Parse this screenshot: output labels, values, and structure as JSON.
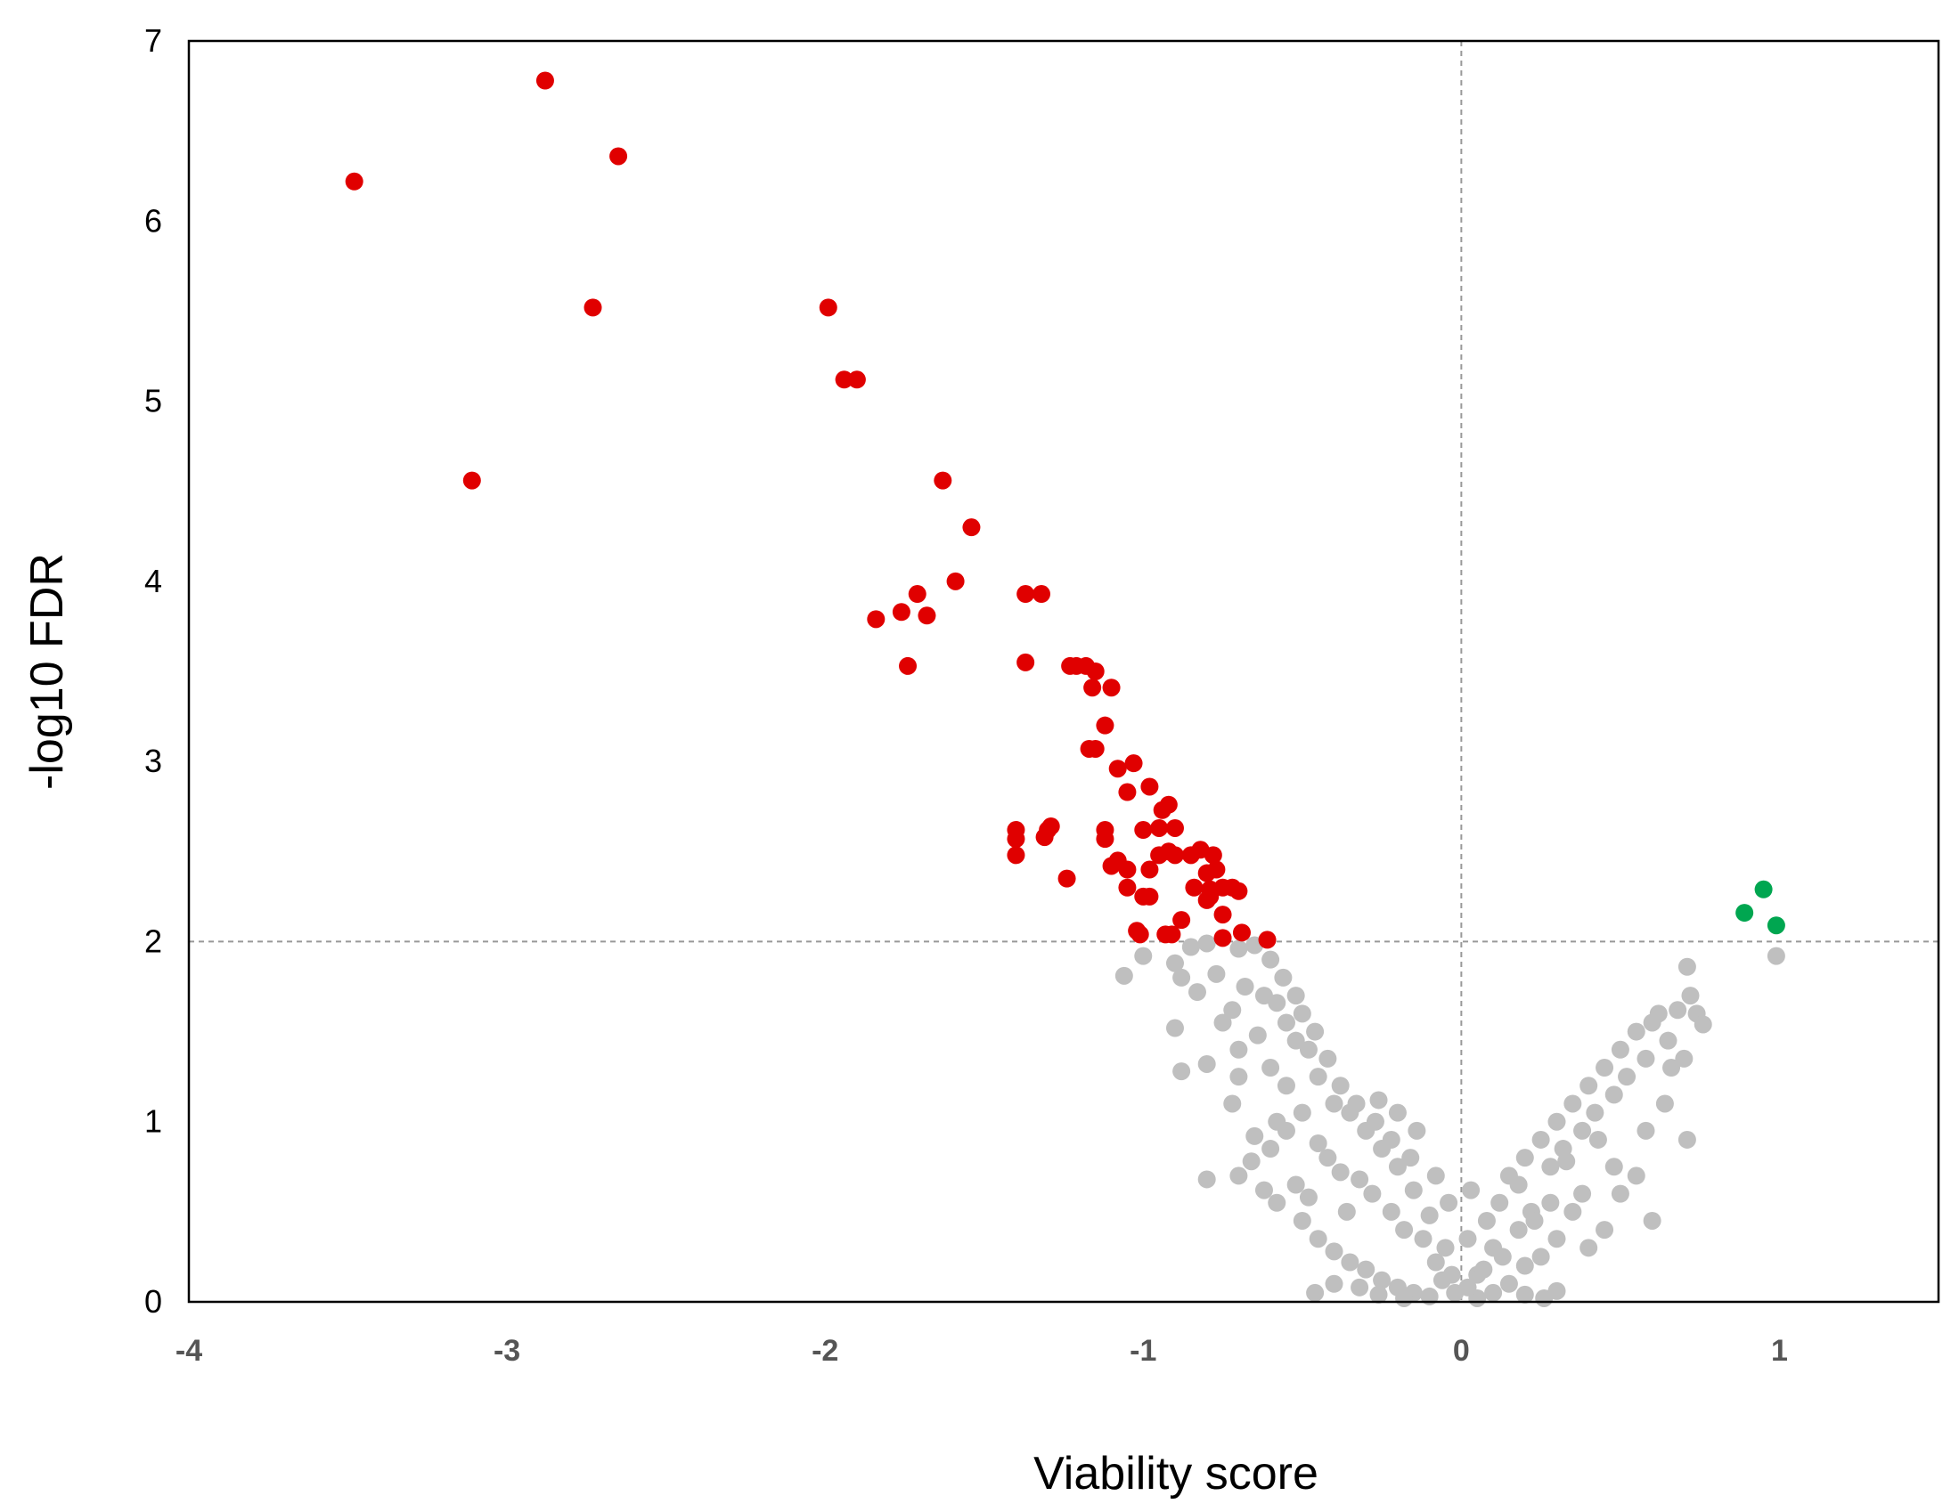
{
  "chart_data": {
    "type": "scatter",
    "title": "",
    "xlabel": "Viability score",
    "ylabel": "-log10 FDR",
    "xlim": [
      -4,
      1.5
    ],
    "ylim": [
      0,
      7
    ],
    "x_ticks": [
      "-4",
      "-3",
      "-2",
      "-1",
      "0",
      "1"
    ],
    "y_ticks": [
      "0",
      "1",
      "2",
      "3",
      "4",
      "5",
      "6",
      "7"
    ],
    "grid": false,
    "legend": "none",
    "reference_lines": {
      "x": 0,
      "y": 2
    },
    "colors": {
      "depleted": "#e00000",
      "enriched": "#00a650",
      "not_significant": "#bfbfbf",
      "reference_line": "#999999"
    },
    "series": [
      {
        "group": "depleted",
        "color": "#e00000",
        "points": [
          [
            -3.48,
            6.22
          ],
          [
            -2.88,
            6.78
          ],
          [
            -2.65,
            6.36
          ],
          [
            -2.73,
            5.52
          ],
          [
            -3.11,
            4.56
          ],
          [
            -1.99,
            5.52
          ],
          [
            -1.94,
            5.12
          ],
          [
            -1.9,
            5.12
          ],
          [
            -1.63,
            4.56
          ],
          [
            -1.54,
            4.3
          ],
          [
            -1.59,
            4.0
          ],
          [
            -1.37,
            3.93
          ],
          [
            -1.32,
            3.93
          ],
          [
            -1.71,
            3.93
          ],
          [
            -1.76,
            3.83
          ],
          [
            -1.84,
            3.79
          ],
          [
            -1.68,
            3.81
          ],
          [
            -1.74,
            3.53
          ],
          [
            -1.37,
            3.55
          ],
          [
            -1.23,
            3.53
          ],
          [
            -1.21,
            3.53
          ],
          [
            -1.18,
            3.53
          ],
          [
            -1.15,
            3.5
          ],
          [
            -1.16,
            3.41
          ],
          [
            -1.1,
            3.41
          ],
          [
            -1.12,
            3.2
          ],
          [
            -1.17,
            3.07
          ],
          [
            -1.15,
            3.07
          ],
          [
            -1.08,
            2.96
          ],
          [
            -1.03,
            2.99
          ],
          [
            -1.05,
            2.83
          ],
          [
            -0.98,
            2.86
          ],
          [
            -0.92,
            2.76
          ],
          [
            -0.94,
            2.73
          ],
          [
            -0.95,
            2.63
          ],
          [
            -0.9,
            2.63
          ],
          [
            -1.0,
            2.62
          ],
          [
            -1.4,
            2.62
          ],
          [
            -1.4,
            2.57
          ],
          [
            -1.29,
            2.64
          ],
          [
            -1.31,
            2.58
          ],
          [
            -1.3,
            2.62
          ],
          [
            -1.12,
            2.62
          ],
          [
            -1.12,
            2.57
          ],
          [
            -1.4,
            2.48
          ],
          [
            -1.1,
            2.42
          ],
          [
            -1.08,
            2.45
          ],
          [
            -1.05,
            2.4
          ],
          [
            -0.98,
            2.4
          ],
          [
            -0.95,
            2.48
          ],
          [
            -0.92,
            2.5
          ],
          [
            -0.9,
            2.48
          ],
          [
            -0.85,
            2.48
          ],
          [
            -0.82,
            2.51
          ],
          [
            -0.78,
            2.48
          ],
          [
            -0.8,
            2.38
          ],
          [
            -0.77,
            2.4
          ],
          [
            -0.84,
            2.3
          ],
          [
            -0.79,
            2.29
          ],
          [
            -0.75,
            2.3
          ],
          [
            -0.72,
            2.3
          ],
          [
            -0.7,
            2.28
          ],
          [
            -1.24,
            2.35
          ],
          [
            -1.05,
            2.3
          ],
          [
            -1.0,
            2.25
          ],
          [
            -0.98,
            2.25
          ],
          [
            -0.79,
            2.25
          ],
          [
            -0.75,
            2.15
          ],
          [
            -0.88,
            2.12
          ],
          [
            -0.8,
            2.23
          ],
          [
            -1.02,
            2.06
          ],
          [
            -1.01,
            2.04
          ],
          [
            -0.93,
            2.04
          ],
          [
            -0.91,
            2.04
          ],
          [
            -0.75,
            2.02
          ],
          [
            -0.69,
            2.05
          ],
          [
            -0.61,
            2.01
          ]
        ]
      },
      {
        "group": "enriched",
        "color": "#00a650",
        "points": [
          [
            0.95,
            2.29
          ],
          [
            0.89,
            2.16
          ],
          [
            0.99,
            2.09
          ]
        ]
      },
      {
        "group": "not_significant",
        "color": "#bfbfbf",
        "points": [
          [
            -1.06,
            1.81
          ],
          [
            -1.0,
            1.92
          ],
          [
            -0.9,
            1.88
          ],
          [
            -0.85,
            1.97
          ],
          [
            -0.8,
            1.99
          ],
          [
            -0.7,
            1.96
          ],
          [
            -0.65,
            1.98
          ],
          [
            -0.6,
            1.9
          ],
          [
            -0.88,
            1.8
          ],
          [
            -0.83,
            1.72
          ],
          [
            -0.77,
            1.82
          ],
          [
            -0.72,
            1.62
          ],
          [
            -0.68,
            1.75
          ],
          [
            -0.62,
            1.7
          ],
          [
            -0.58,
            1.66
          ],
          [
            -0.55,
            1.55
          ],
          [
            -0.5,
            1.6
          ],
          [
            -0.48,
            1.4
          ],
          [
            -0.52,
            1.45
          ],
          [
            -0.64,
            1.48
          ],
          [
            -0.7,
            1.4
          ],
          [
            -0.75,
            1.55
          ],
          [
            -0.9,
            1.52
          ],
          [
            -0.8,
            1.32
          ],
          [
            -0.7,
            1.25
          ],
          [
            -0.6,
            1.3
          ],
          [
            -0.55,
            1.2
          ],
          [
            -0.45,
            1.25
          ],
          [
            -0.4,
            1.1
          ],
          [
            -0.35,
            1.05
          ],
          [
            -0.3,
            0.95
          ],
          [
            -0.25,
            0.85
          ],
          [
            -0.2,
            0.75
          ],
          [
            -0.15,
            0.62
          ],
          [
            -0.1,
            0.48
          ],
          [
            -0.05,
            0.3
          ],
          [
            -0.03,
            0.15
          ],
          [
            -0.5,
            1.05
          ],
          [
            -0.55,
            0.95
          ],
          [
            -0.6,
            0.85
          ],
          [
            -0.65,
            0.92
          ],
          [
            -0.72,
            1.1
          ],
          [
            -0.45,
            0.88
          ],
          [
            -0.42,
            0.8
          ],
          [
            -0.38,
            0.72
          ],
          [
            -0.32,
            0.68
          ],
          [
            -0.28,
            0.6
          ],
          [
            -0.22,
            0.5
          ],
          [
            -0.18,
            0.4
          ],
          [
            -0.12,
            0.35
          ],
          [
            -0.08,
            0.22
          ],
          [
            -0.06,
            0.12
          ],
          [
            -0.02,
            0.05
          ],
          [
            -0.7,
            0.7
          ],
          [
            -0.62,
            0.62
          ],
          [
            -0.58,
            0.55
          ],
          [
            -0.5,
            0.45
          ],
          [
            -0.45,
            0.35
          ],
          [
            -0.4,
            0.28
          ],
          [
            -0.35,
            0.22
          ],
          [
            -0.3,
            0.18
          ],
          [
            -0.25,
            0.12
          ],
          [
            -0.2,
            0.08
          ],
          [
            -0.15,
            0.05
          ],
          [
            -0.46,
            0.05
          ],
          [
            -0.4,
            0.1
          ],
          [
            -0.32,
            0.08
          ],
          [
            -0.26,
            0.04
          ],
          [
            -0.18,
            0.02
          ],
          [
            -0.1,
            0.03
          ],
          [
            -0.56,
            1.8
          ],
          [
            -0.52,
            1.7
          ],
          [
            -0.46,
            1.5
          ],
          [
            -0.42,
            1.35
          ],
          [
            -0.38,
            1.2
          ],
          [
            -0.33,
            1.1
          ],
          [
            -0.27,
            1.0
          ],
          [
            -0.22,
            0.9
          ],
          [
            -0.16,
            0.8
          ],
          [
            -0.26,
            1.12
          ],
          [
            -0.2,
            1.05
          ],
          [
            -0.14,
            0.95
          ],
          [
            -0.08,
            0.7
          ],
          [
            -0.04,
            0.55
          ],
          [
            -0.88,
            1.28
          ],
          [
            -0.8,
            0.68
          ],
          [
            -0.66,
            0.78
          ],
          [
            -0.52,
            0.65
          ],
          [
            -0.48,
            0.58
          ],
          [
            -0.58,
            1.0
          ],
          [
            -0.36,
            0.5
          ],
          [
            0.02,
            0.35
          ],
          [
            0.03,
            0.62
          ],
          [
            0.05,
            0.15
          ],
          [
            0.08,
            0.45
          ],
          [
            0.1,
            0.3
          ],
          [
            0.12,
            0.55
          ],
          [
            0.15,
            0.7
          ],
          [
            0.18,
            0.65
          ],
          [
            0.2,
            0.8
          ],
          [
            0.22,
            0.5
          ],
          [
            0.25,
            0.9
          ],
          [
            0.28,
            0.75
          ],
          [
            0.3,
            1.0
          ],
          [
            0.32,
            0.85
          ],
          [
            0.35,
            1.1
          ],
          [
            0.38,
            0.95
          ],
          [
            0.4,
            1.2
          ],
          [
            0.42,
            1.05
          ],
          [
            0.45,
            1.3
          ],
          [
            0.48,
            1.15
          ],
          [
            0.5,
            1.4
          ],
          [
            0.52,
            1.25
          ],
          [
            0.55,
            1.5
          ],
          [
            0.58,
            1.35
          ],
          [
            0.6,
            1.55
          ],
          [
            0.62,
            1.6
          ],
          [
            0.65,
            1.45
          ],
          [
            0.68,
            1.62
          ],
          [
            0.72,
            1.7
          ],
          [
            0.74,
            1.6
          ],
          [
            0.76,
            1.54
          ],
          [
            0.71,
            1.86
          ],
          [
            0.66,
            1.3
          ],
          [
            0.7,
            1.35
          ],
          [
            0.71,
            0.9
          ],
          [
            0.6,
            0.45
          ],
          [
            0.55,
            0.7
          ],
          [
            0.5,
            0.6
          ],
          [
            0.45,
            0.4
          ],
          [
            0.4,
            0.3
          ],
          [
            0.35,
            0.5
          ],
          [
            0.3,
            0.35
          ],
          [
            0.25,
            0.25
          ],
          [
            0.2,
            0.2
          ],
          [
            0.15,
            0.1
          ],
          [
            0.1,
            0.05
          ],
          [
            0.05,
            0.02
          ],
          [
            0.02,
            0.08
          ],
          [
            0.18,
            0.4
          ],
          [
            0.28,
            0.55
          ],
          [
            0.38,
            0.6
          ],
          [
            0.48,
            0.75
          ],
          [
            0.58,
            0.95
          ],
          [
            0.64,
            1.1
          ],
          [
            0.43,
            0.9
          ],
          [
            0.33,
            0.78
          ],
          [
            0.23,
            0.45
          ],
          [
            0.13,
            0.25
          ],
          [
            0.07,
            0.18
          ],
          [
            0.26,
            0.02
          ],
          [
            0.3,
            0.06
          ],
          [
            0.2,
            0.04
          ],
          [
            0.99,
            1.92
          ]
        ]
      }
    ]
  }
}
